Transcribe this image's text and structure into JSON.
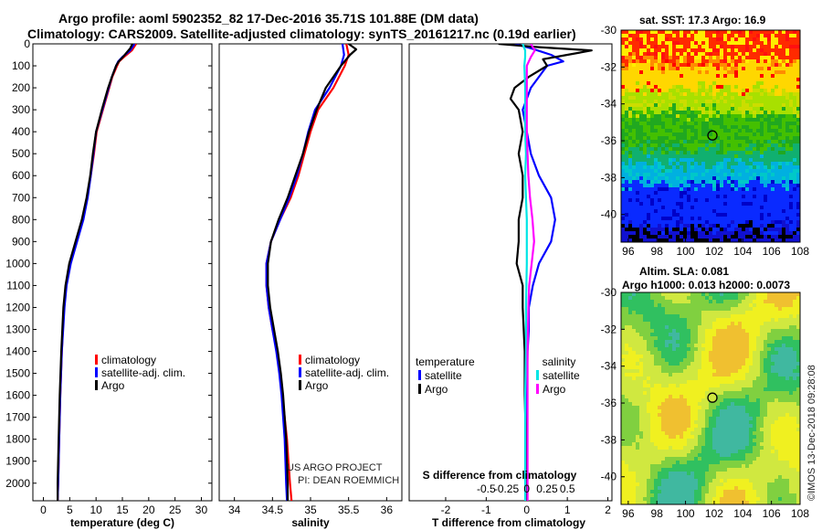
{
  "title_line1": "Argo profile: aoml 5902352_82 17-Dec-2016 35.71S 101.88E (DM data)",
  "title_line2": "Climatology: CARS2009. Satellite-adjusted climatology: synTS_20161217.nc (0.19d earlier)",
  "sst_label": "sat. SST: 17.3 Argo: 16.9",
  "sla_line1": "Altim. SLA: 0.081",
  "sla_line2": "Argo h1000: 0.013 h2000: 0.0073",
  "credit_line1": "US ARGO PROJECT",
  "credit_line2": "PI: DEAN ROEMMICH",
  "watermark": "©IMOS 13-Dec-2018 09:28:08",
  "colors": {
    "climatology": "#ff0000",
    "satellite_adj": "#0000ff",
    "argo": "#000000",
    "satellite_diff": "#00e5e5",
    "argo_s_diff": "#ff00ff"
  },
  "chart_data": [
    {
      "type": "line",
      "name": "temperature-profile",
      "xlabel": "temperature (deg C)",
      "ylabel": "",
      "xlim": [
        -2,
        32
      ],
      "ylim": [
        2080,
        0
      ],
      "xticks": [
        "0",
        "5",
        "10",
        "15",
        "20",
        "25",
        "30"
      ],
      "yticks": [
        "0",
        "100",
        "200",
        "300",
        "400",
        "500",
        "600",
        "700",
        "800",
        "900",
        "1000",
        "1100",
        "1200",
        "1300",
        "1400",
        "1500",
        "1600",
        "1700",
        "1800",
        "1900",
        "2000"
      ],
      "legend": [
        "climatology",
        "satellite-adj. clim.",
        "Argo"
      ],
      "series": [
        {
          "name": "climatology",
          "depth": [
            0,
            30,
            60,
            80,
            100,
            150,
            200,
            300,
            400,
            500,
            600,
            700,
            800,
            900,
            1000,
            1100,
            1200,
            1400,
            1600,
            1800,
            2000,
            2080
          ],
          "values": [
            17.6,
            16.8,
            15.3,
            14.4,
            14.0,
            13.1,
            12.5,
            11.3,
            10.1,
            9.6,
            9.0,
            8.3,
            7.5,
            6.3,
            5.1,
            4.3,
            3.9,
            3.5,
            3.2,
            3.0,
            2.8,
            2.7
          ]
        },
        {
          "name": "satellite-adj. clim.",
          "depth": [
            0,
            30,
            60,
            80,
            100,
            150,
            200,
            300,
            400,
            500,
            600,
            700,
            800,
            900,
            1000,
            1100,
            1200,
            1400,
            1600,
            1800,
            2000,
            2080
          ],
          "values": [
            17.3,
            16.5,
            15.0,
            14.2,
            13.8,
            13.0,
            12.4,
            11.2,
            10.0,
            9.5,
            9.0,
            8.4,
            7.6,
            6.4,
            5.2,
            4.4,
            4.0,
            3.5,
            3.2,
            3.0,
            2.8,
            2.7
          ]
        },
        {
          "name": "Argo",
          "depth": [
            0,
            20,
            40,
            60,
            80,
            100,
            150,
            200,
            300,
            400,
            500,
            600,
            700,
            800,
            900,
            1000,
            1100,
            1200,
            1400,
            1600,
            1800,
            2000,
            2080
          ],
          "values": [
            16.9,
            16.5,
            15.8,
            15.1,
            14.3,
            13.8,
            13.0,
            12.3,
            11.1,
            10.0,
            9.4,
            8.9,
            8.2,
            7.3,
            6.1,
            4.9,
            4.2,
            3.8,
            3.4,
            3.1,
            2.9,
            2.7,
            2.7
          ]
        }
      ]
    },
    {
      "type": "line",
      "name": "salinity-profile",
      "xlabel": "salinity",
      "xlim": [
        33.8,
        36.2
      ],
      "ylim": [
        2080,
        0
      ],
      "xticks": [
        "34",
        "34.5",
        "35",
        "35.5",
        "36"
      ],
      "legend": [
        "climatology",
        "satellite-adj. clim.",
        "Argo"
      ],
      "series": [
        {
          "name": "climatology",
          "depth": [
            0,
            50,
            100,
            200,
            300,
            400,
            500,
            600,
            700,
            800,
            900,
            1000,
            1100,
            1200,
            1300,
            1400,
            1500,
            1600,
            1700,
            1800,
            1900,
            2000,
            2080
          ],
          "values": [
            35.47,
            35.5,
            35.45,
            35.3,
            35.1,
            35.0,
            34.92,
            34.84,
            34.74,
            34.6,
            34.48,
            34.42,
            34.42,
            34.45,
            34.5,
            34.56,
            34.6,
            34.63,
            34.66,
            34.69,
            34.71,
            34.73,
            34.75
          ]
        },
        {
          "name": "satellite-adj. clim.",
          "depth": [
            0,
            50,
            100,
            200,
            300,
            400,
            500,
            600,
            700,
            800,
            900,
            1000,
            1100,
            1200,
            1300,
            1400,
            1500,
            1600,
            1700,
            1800,
            1900,
            2000,
            2080
          ],
          "values": [
            35.42,
            35.44,
            35.4,
            35.25,
            35.06,
            34.97,
            34.9,
            34.82,
            34.72,
            34.6,
            34.48,
            34.42,
            34.42,
            34.45,
            34.5,
            34.55,
            34.59,
            34.62,
            34.64,
            34.66,
            34.67,
            34.68,
            34.69
          ]
        },
        {
          "name": "Argo",
          "depth": [
            0,
            25,
            50,
            75,
            100,
            150,
            200,
            300,
            400,
            500,
            600,
            700,
            800,
            900,
            1000,
            1100,
            1200,
            1300,
            1400,
            1500,
            1600,
            1700,
            1800,
            1900,
            2000,
            2080
          ],
          "values": [
            35.5,
            35.6,
            35.52,
            35.46,
            35.4,
            35.3,
            35.2,
            35.08,
            34.98,
            34.9,
            34.8,
            34.7,
            34.58,
            34.48,
            34.44,
            34.44,
            34.47,
            34.52,
            34.57,
            34.61,
            34.64,
            34.66,
            34.68,
            34.69,
            34.7,
            34.7
          ]
        }
      ]
    },
    {
      "type": "line",
      "name": "difference-profile",
      "xlabel": "T difference from climatology",
      "xlabel_top": "S difference from climatology",
      "xlim": [
        -2.9,
        2.1
      ],
      "ylim": [
        2080,
        0
      ],
      "xticks": [
        "-2",
        "-1",
        "0",
        "1",
        "2"
      ],
      "xticks_s": [
        "-0.5",
        "-0.25",
        "0",
        "0.25",
        "0.5"
      ],
      "legend_left_title": "temperature",
      "legend_right_title": "salinity",
      "legend": [
        "satellite",
        "Argo",
        "satellite",
        "Argo"
      ],
      "series": [
        {
          "name": "temperature satellite",
          "depth": [
            0,
            20,
            50,
            80,
            100,
            200,
            300,
            400,
            500,
            600,
            700,
            800,
            900,
            1000,
            1100,
            1200,
            1300,
            1400,
            1600,
            1800,
            2000,
            2080
          ],
          "values": [
            -0.3,
            0.1,
            0.6,
            0.9,
            0.5,
            0.1,
            -0.1,
            0.0,
            0.1,
            0.3,
            0.6,
            0.7,
            0.6,
            0.3,
            0.15,
            0.05,
            0.05,
            0.02,
            0.0,
            0.0,
            0.0,
            0.0
          ]
        },
        {
          "name": "temperature Argo",
          "depth": [
            0,
            15,
            30,
            50,
            70,
            100,
            150,
            200,
            250,
            300,
            400,
            500,
            600,
            700,
            800,
            900,
            1000,
            1100,
            1200,
            1400,
            1600,
            1800,
            2000,
            2080
          ],
          "values": [
            -0.7,
            0.3,
            1.6,
            1.0,
            0.4,
            0.5,
            0.05,
            -0.3,
            -0.4,
            -0.2,
            -0.1,
            -0.2,
            -0.1,
            -0.1,
            -0.2,
            -0.2,
            -0.25,
            -0.1,
            -0.1,
            -0.05,
            -0.05,
            -0.02,
            -0.02,
            -0.02
          ]
        },
        {
          "name": "salinity satellite",
          "depth": [
            0,
            30,
            60,
            100,
            200,
            300,
            400,
            500,
            600,
            700,
            800,
            900,
            1000,
            1200,
            1400,
            1600,
            1800,
            2000,
            2080
          ],
          "values": [
            -0.05,
            -0.02,
            -0.02,
            -0.03,
            -0.02,
            -0.02,
            -0.02,
            -0.01,
            -0.02,
            -0.01,
            0.0,
            0.0,
            0.0,
            -0.01,
            -0.01,
            -0.02,
            -0.02,
            -0.02,
            -0.02
          ]
        },
        {
          "name": "salinity Argo",
          "depth": [
            0,
            30,
            60,
            100,
            200,
            300,
            400,
            500,
            600,
            700,
            800,
            900,
            1000,
            1100,
            1200,
            1400,
            1600,
            1800,
            2000,
            2080
          ],
          "values": [
            0.05,
            0.1,
            0.05,
            0.0,
            0.0,
            0.0,
            0.0,
            0.01,
            0.02,
            0.04,
            0.07,
            0.09,
            0.06,
            0.03,
            0.02,
            0.01,
            0.01,
            0.01,
            0.01,
            0.01
          ]
        }
      ]
    },
    {
      "type": "heatmap",
      "name": "sst-map",
      "title": "sat. SST: 17.3 Argo: 16.9",
      "xlim": [
        95.5,
        108
      ],
      "ylim": [
        -41.5,
        -30
      ],
      "xticks": [
        "96",
        "98",
        "100",
        "102",
        "104",
        "106",
        "108"
      ],
      "yticks": [
        "-30",
        "-32",
        "-34",
        "-36",
        "-38",
        "-40"
      ],
      "marker": {
        "lon": 101.88,
        "lat": -35.71
      }
    },
    {
      "type": "heatmap",
      "name": "sla-map",
      "title": "Altim. SLA: 0.081",
      "xlim": [
        95.5,
        108
      ],
      "ylim": [
        -41.5,
        -30
      ],
      "xticks": [
        "96",
        "98",
        "100",
        "102",
        "104",
        "106",
        "108"
      ],
      "yticks": [
        "-30",
        "-32",
        "-34",
        "-36",
        "-38",
        "-40"
      ],
      "marker": {
        "lon": 101.88,
        "lat": -35.71
      }
    }
  ]
}
